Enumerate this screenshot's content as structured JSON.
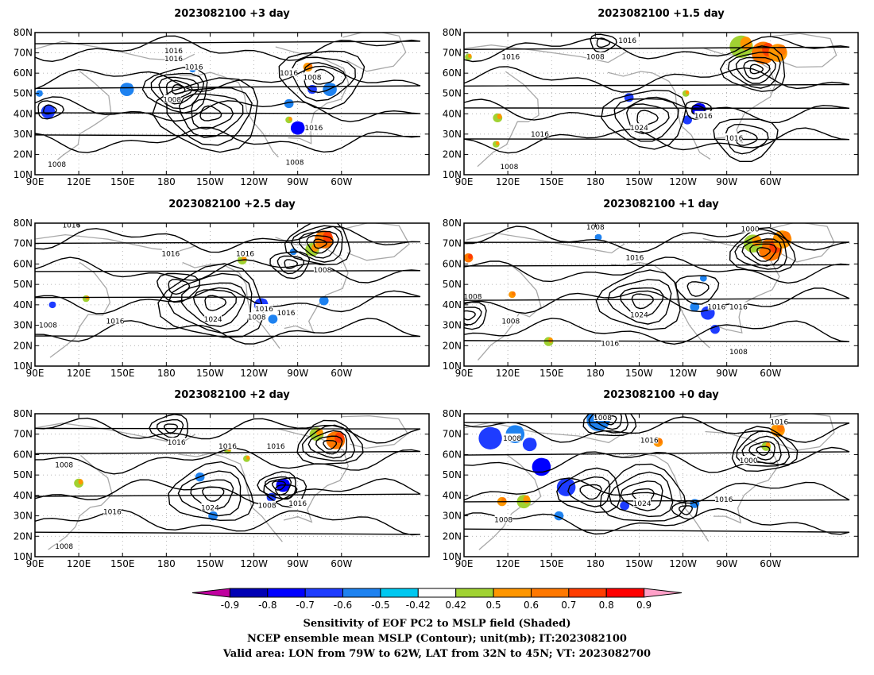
{
  "panels": [
    {
      "title": "2023082100 +3 day",
      "highs": [
        {
          "lon": -150,
          "lat": 40,
          "n": 5
        },
        {
          "lon": -73,
          "lat": 58,
          "n": 4
        }
      ],
      "lows": [
        {
          "lon": -172,
          "lat": 52,
          "n": 5
        },
        {
          "lon": 100,
          "lat": 42,
          "n": 2
        }
      ],
      "labels": [
        {
          "lon": -175,
          "lat": 71,
          "t": "1016"
        },
        {
          "lon": -175,
          "lat": 67,
          "t": "1016"
        },
        {
          "lon": -161,
          "lat": 63,
          "t": "1016"
        },
        {
          "lon": -96,
          "lat": 60,
          "t": "1016"
        },
        {
          "lon": -80,
          "lat": 58,
          "t": "1008"
        },
        {
          "lon": -176,
          "lat": 47,
          "t": "1008"
        },
        {
          "lon": -79,
          "lat": 33,
          "t": "1016"
        },
        {
          "lon": -92,
          "lat": 16,
          "t": "1008"
        },
        {
          "lon": 105,
          "lat": 15,
          "t": "1008"
        }
      ],
      "blobs": [
        {
          "lon": 99,
          "lat": 41,
          "r": 3,
          "v": -0.6
        },
        {
          "lon": 153,
          "lat": 52,
          "r": 3,
          "v": -0.5
        },
        {
          "lon": -90,
          "lat": 33,
          "r": 3,
          "v": -0.7
        },
        {
          "lon": -80,
          "lat": 52,
          "r": 2,
          "v": -0.6
        },
        {
          "lon": -96,
          "lat": 45,
          "r": 2,
          "v": -0.5
        },
        {
          "lon": -68,
          "lat": 52,
          "r": 3,
          "v": -0.5
        },
        {
          "lon": -83,
          "lat": 63,
          "r": 2,
          "v": 0.6
        },
        {
          "lon": -96,
          "lat": 37,
          "r": 1.5,
          "v": 0.5
        },
        {
          "lon": 93,
          "lat": 50,
          "r": 1.5,
          "v": -0.5
        },
        {
          "lon": -162,
          "lat": 62,
          "r": 1.5,
          "v": -0.5
        }
      ]
    },
    {
      "title": "2023082100 +1.5 day",
      "highs": [
        {
          "lon": -145,
          "lat": 38,
          "n": 4
        },
        {
          "lon": -77,
          "lat": 28,
          "n": 3
        }
      ],
      "lows": [
        {
          "lon": -70,
          "lat": 62,
          "n": 5
        },
        {
          "lon": -175,
          "lat": 75,
          "n": 2
        },
        {
          "lon": -110,
          "lat": 42,
          "n": 2
        }
      ],
      "labels": [
        {
          "lon": -158,
          "lat": 76,
          "t": "1016"
        },
        {
          "lon": -180,
          "lat": 68,
          "t": "1008"
        },
        {
          "lon": 122,
          "lat": 68,
          "t": "1016"
        },
        {
          "lon": -150,
          "lat": 33,
          "t": "1024"
        },
        {
          "lon": 142,
          "lat": 30,
          "t": "1016"
        },
        {
          "lon": -106,
          "lat": 39,
          "t": "1016"
        },
        {
          "lon": -85,
          "lat": 28,
          "t": "1016"
        },
        {
          "lon": 121,
          "lat": 14,
          "t": "1008"
        }
      ],
      "blobs": [
        {
          "lon": -65,
          "lat": 70,
          "r": 5,
          "v": 0.7
        },
        {
          "lon": -80,
          "lat": 73,
          "r": 5,
          "v": 0.5
        },
        {
          "lon": -55,
          "lat": 70,
          "r": 4,
          "v": 0.6
        },
        {
          "lon": -109,
          "lat": 42,
          "r": 3,
          "v": -0.7
        },
        {
          "lon": -117,
          "lat": 37,
          "r": 2,
          "v": -0.6
        },
        {
          "lon": -157,
          "lat": 48,
          "r": 2,
          "v": -0.6
        },
        {
          "lon": 113,
          "lat": 38,
          "r": 2,
          "v": 0.5
        },
        {
          "lon": 112,
          "lat": 25,
          "r": 1.5,
          "v": 0.5
        },
        {
          "lon": 93,
          "lat": 68,
          "r": 1.5,
          "v": 0.5
        },
        {
          "lon": -118,
          "lat": 50,
          "r": 1.5,
          "v": 0.5
        }
      ]
    },
    {
      "title": "2023082100 +2.5 day",
      "highs": [
        {
          "lon": -147,
          "lat": 41,
          "n": 5
        },
        {
          "lon": -172,
          "lat": 49,
          "n": 2
        }
      ],
      "lows": [
        {
          "lon": -75,
          "lat": 70,
          "n": 5
        },
        {
          "lon": -95,
          "lat": 60,
          "n": 3
        }
      ],
      "labels": [
        {
          "lon": 115,
          "lat": 79,
          "t": "1016"
        },
        {
          "lon": -177,
          "lat": 65,
          "t": "1016"
        },
        {
          "lon": -126,
          "lat": 65,
          "t": "1016"
        },
        {
          "lon": -73,
          "lat": 57,
          "t": "1008"
        },
        {
          "lon": -148,
          "lat": 33,
          "t": "1024"
        },
        {
          "lon": 145,
          "lat": 32,
          "t": "1016"
        },
        {
          "lon": -113,
          "lat": 38,
          "t": "1016"
        },
        {
          "lon": -98,
          "lat": 36,
          "t": "1016"
        },
        {
          "lon": -118,
          "lat": 34,
          "t": "1008"
        },
        {
          "lon": 99,
          "lat": 30,
          "t": "1008"
        }
      ],
      "blobs": [
        {
          "lon": -72,
          "lat": 72,
          "r": 4,
          "v": 0.7
        },
        {
          "lon": -80,
          "lat": 67,
          "r": 3,
          "v": 0.5
        },
        {
          "lon": -115,
          "lat": 40,
          "r": 3,
          "v": -0.6
        },
        {
          "lon": -107,
          "lat": 33,
          "r": 2,
          "v": -0.5
        },
        {
          "lon": -72,
          "lat": 42,
          "r": 2,
          "v": -0.5
        },
        {
          "lon": -93,
          "lat": 66,
          "r": 1.5,
          "v": -0.5
        },
        {
          "lon": -128,
          "lat": 62,
          "r": 2,
          "v": 0.5
        },
        {
          "lon": 125,
          "lat": 43,
          "r": 1.5,
          "v": 0.5
        },
        {
          "lon": 102,
          "lat": 40,
          "r": 1.5,
          "v": -0.6
        }
      ]
    },
    {
      "title": "2023082100 +1 day",
      "highs": [
        {
          "lon": -148,
          "lat": 42,
          "n": 4
        },
        {
          "lon": -110,
          "lat": 48,
          "n": 2
        }
      ],
      "lows": [
        {
          "lon": -65,
          "lat": 66,
          "n": 5
        },
        {
          "lon": 93,
          "lat": 35,
          "n": 3
        }
      ],
      "labels": [
        {
          "lon": -180,
          "lat": 78,
          "t": "1008"
        },
        {
          "lon": -74,
          "lat": 77,
          "t": "1000"
        },
        {
          "lon": -153,
          "lat": 63,
          "t": "1016"
        },
        {
          "lon": 96,
          "lat": 44,
          "t": "1008"
        },
        {
          "lon": 122,
          "lat": 32,
          "t": "1008"
        },
        {
          "lon": -150,
          "lat": 35,
          "t": "1024"
        },
        {
          "lon": -170,
          "lat": 21,
          "t": "1016"
        },
        {
          "lon": -97,
          "lat": 39,
          "t": "1016"
        },
        {
          "lon": -82,
          "lat": 39,
          "t": "1016"
        },
        {
          "lon": -82,
          "lat": 17,
          "t": "1008"
        }
      ],
      "blobs": [
        {
          "lon": -60,
          "lat": 67,
          "r": 5,
          "v": 0.7
        },
        {
          "lon": -72,
          "lat": 70,
          "r": 4,
          "v": 0.5
        },
        {
          "lon": -52,
          "lat": 72,
          "r": 4,
          "v": 0.6
        },
        {
          "lon": -103,
          "lat": 36,
          "r": 3,
          "v": -0.6
        },
        {
          "lon": -112,
          "lat": 39,
          "r": 2,
          "v": -0.5
        },
        {
          "lon": -98,
          "lat": 28,
          "r": 2,
          "v": -0.6
        },
        {
          "lon": 93,
          "lat": 63,
          "r": 2,
          "v": 0.7
        },
        {
          "lon": 123,
          "lat": 45,
          "r": 1.5,
          "v": 0.6
        },
        {
          "lon": 148,
          "lat": 22,
          "r": 2,
          "v": 0.5
        },
        {
          "lon": -178,
          "lat": 73,
          "r": 1.5,
          "v": -0.5
        },
        {
          "lon": -106,
          "lat": 53,
          "r": 1.5,
          "v": -0.5
        }
      ]
    },
    {
      "title": "2023082100 +2 day",
      "highs": [
        {
          "lon": -148,
          "lat": 41,
          "n": 4
        },
        {
          "lon": -98,
          "lat": 42,
          "n": 2
        }
      ],
      "lows": [
        {
          "lon": -68,
          "lat": 65,
          "n": 5
        },
        {
          "lon": -177,
          "lat": 73,
          "n": 3
        },
        {
          "lon": -103,
          "lat": 45,
          "n": 3
        }
      ],
      "labels": [
        {
          "lon": -173,
          "lat": 66,
          "t": "1016"
        },
        {
          "lon": -138,
          "lat": 64,
          "t": "1016"
        },
        {
          "lon": -105,
          "lat": 64,
          "t": "1016"
        },
        {
          "lon": 110,
          "lat": 55,
          "t": "1008"
        },
        {
          "lon": -150,
          "lat": 34,
          "t": "1024"
        },
        {
          "lon": 143,
          "lat": 32,
          "t": "1016"
        },
        {
          "lon": -111,
          "lat": 35,
          "t": "1008"
        },
        {
          "lon": -90,
          "lat": 36,
          "t": "1016"
        },
        {
          "lon": 110,
          "lat": 15,
          "t": "1008"
        }
      ],
      "blobs": [
        {
          "lon": -64,
          "lat": 67,
          "r": 4,
          "v": 0.7
        },
        {
          "lon": -77,
          "lat": 70,
          "r": 3,
          "v": 0.5
        },
        {
          "lon": -100,
          "lat": 45,
          "r": 3,
          "v": -0.7
        },
        {
          "lon": -108,
          "lat": 39,
          "r": 2,
          "v": -0.6
        },
        {
          "lon": -157,
          "lat": 49,
          "r": 2,
          "v": -0.5
        },
        {
          "lon": -148,
          "lat": 30,
          "r": 2,
          "v": -0.5
        },
        {
          "lon": -125,
          "lat": 58,
          "r": 1.5,
          "v": 0.5
        },
        {
          "lon": 120,
          "lat": 46,
          "r": 2,
          "v": 0.5
        },
        {
          "lon": -138,
          "lat": 62,
          "r": 1.5,
          "v": 0.5
        }
      ]
    },
    {
      "title": "2023082100 +0 day",
      "highs": [
        {
          "lon": -147,
          "lat": 40,
          "n": 4
        },
        {
          "lon": -183,
          "lat": 42,
          "n": 3
        }
      ],
      "lows": [
        {
          "lon": -170,
          "lat": 77,
          "n": 4
        },
        {
          "lon": -65,
          "lat": 62,
          "n": 5
        },
        {
          "lon": -118,
          "lat": 33,
          "n": 2
        }
      ],
      "labels": [
        {
          "lon": -175,
          "lat": 78,
          "t": "1008"
        },
        {
          "lon": -54,
          "lat": 76,
          "t": "1016"
        },
        {
          "lon": 123,
          "lat": 68,
          "t": "1008"
        },
        {
          "lon": -143,
          "lat": 67,
          "t": "1016"
        },
        {
          "lon": -75,
          "lat": 57,
          "t": "1000"
        },
        {
          "lon": -148,
          "lat": 36,
          "t": "1024"
        },
        {
          "lon": -92,
          "lat": 38,
          "t": "1016"
        },
        {
          "lon": 117,
          "lat": 28,
          "t": "1008"
        }
      ],
      "blobs": [
        {
          "lon": 108,
          "lat": 68,
          "r": 5,
          "v": -0.6
        },
        {
          "lon": 125,
          "lat": 70,
          "r": 4,
          "v": -0.5
        },
        {
          "lon": 143,
          "lat": 54,
          "r": 4,
          "v": -0.7
        },
        {
          "lon": 160,
          "lat": 44,
          "r": 4,
          "v": -0.6
        },
        {
          "lon": 135,
          "lat": 65,
          "r": 3,
          "v": -0.6
        },
        {
          "lon": -178,
          "lat": 77,
          "r": 5,
          "v": -0.5
        },
        {
          "lon": -137,
          "lat": 66,
          "r": 2,
          "v": 0.6
        },
        {
          "lon": 131,
          "lat": 37,
          "r": 3,
          "v": 0.5
        },
        {
          "lon": 116,
          "lat": 37,
          "r": 2,
          "v": 0.6
        },
        {
          "lon": -55,
          "lat": 72,
          "r": 3,
          "v": 0.6
        },
        {
          "lon": -63,
          "lat": 64,
          "r": 2,
          "v": 0.5
        },
        {
          "lon": -160,
          "lat": 35,
          "r": 2,
          "v": -0.6
        },
        {
          "lon": -112,
          "lat": 36,
          "r": 2,
          "v": -0.5
        },
        {
          "lon": 155,
          "lat": 30,
          "r": 2,
          "v": -0.5
        }
      ]
    }
  ],
  "axes": {
    "lat_ticks": [
      "80N",
      "70N",
      "60N",
      "50N",
      "40N",
      "30N",
      "20N",
      "10N"
    ],
    "lon_ticks": [
      "90E",
      "120E",
      "150E",
      "180",
      "150W",
      "120W",
      "90W",
      "60W"
    ]
  },
  "colorbar": {
    "ticks": [
      "-0.9",
      "-0.8",
      "-0.7",
      "-0.6",
      "-0.5",
      "-0.42",
      "0.42",
      "0.5",
      "0.6",
      "0.7",
      "0.8",
      "0.9"
    ],
    "colors": [
      "#c0009f",
      "#0000b4",
      "#0000ff",
      "#1e3cff",
      "#1e82f0",
      "#00c8f0",
      "#ffffff",
      "#a0d232",
      "#ff9600",
      "#ff7800",
      "#ff3c00",
      "#ff0000",
      "#ffa0c8"
    ]
  },
  "captions": [
    "Sensitivity of EOF PC2 to MSLP field (Shaded)",
    "NCEP ensemble mean MSLP (Contour); unit(mb); IT:2023082100",
    "Valid area: LON from 79W to 62W, LAT from 32N to 45N; VT: 2023082700"
  ]
}
